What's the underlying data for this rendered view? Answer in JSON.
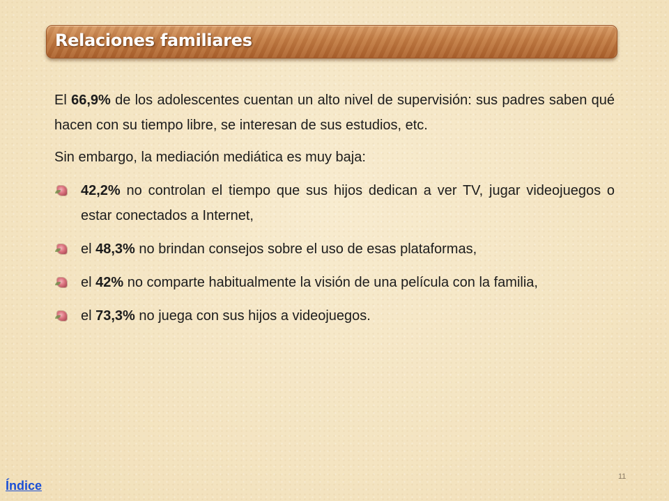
{
  "title": "Relaciones familiares",
  "paragraph1": {
    "pre": "El ",
    "highlight": "66,9%",
    "post": " de los adolescentes cuentan un alto nivel de supervisión: sus padres saben qué hacen con su tiempo libre, se interesan de sus estudios, etc."
  },
  "paragraph2": "Sin embargo, la mediación mediática es muy baja:",
  "bullets": [
    {
      "pre": "",
      "highlight": "42,2%",
      "post": " no controlan el tiempo que sus hijos dedican a ver TV, jugar videojuegos o estar conectados a Internet,"
    },
    {
      "pre": "el ",
      "highlight": "48,3%",
      "post": " no brindan consejos sobre el uso de esas plataformas,"
    },
    {
      "pre": "el ",
      "highlight": "42%",
      "post": " no comparte habitualmente la visión de una película con la familia,"
    },
    {
      "pre": "el ",
      "highlight": "73,3%",
      "post": " no juega con sus hijos a videojuegos."
    }
  ],
  "footer": {
    "link": "Índice",
    "page_number": "11"
  },
  "colors": {
    "title_bar": "#c07a43",
    "link": "#1a4fd6"
  },
  "icons": {
    "bullet": "flower-bullet-icon"
  }
}
